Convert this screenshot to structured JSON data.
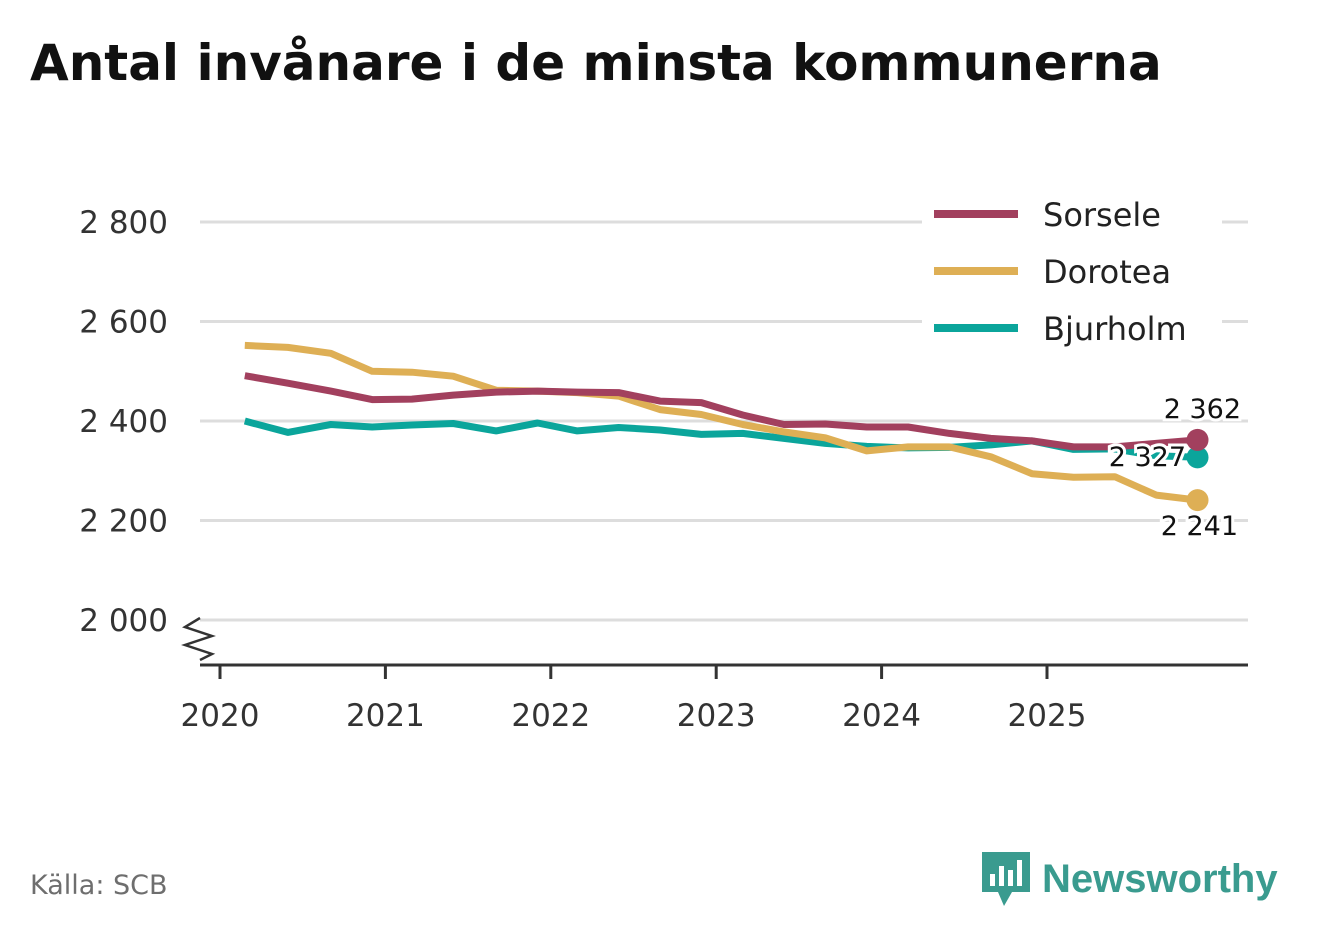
{
  "title": "Antal invånare i de minsta kommunerna",
  "source": "Källa: SCB",
  "brand": {
    "name": "Newsworthy",
    "icon": "newsworthy-logo-icon"
  },
  "colors": {
    "Sorsele": "#a2405e",
    "Dorotea": "#deaf55",
    "Bjurholm": "#0ba59b",
    "grid": "#dddddd",
    "axis": "#333333"
  },
  "chart_data": {
    "type": "line",
    "title": "Antal invånare i de minsta kommunerna",
    "xlabel": "",
    "ylabel": "",
    "xlim": [
      2020,
      2026.2
    ],
    "ylim": [
      2000,
      2850
    ],
    "y_ticks": [
      2000,
      2200,
      2400,
      2600,
      2800
    ],
    "y_tick_labels": [
      "2 000",
      "2 200",
      "2 400",
      "2 600",
      "2 800"
    ],
    "x_ticks": [
      2020,
      2021,
      2022,
      2023,
      2024,
      2025
    ],
    "x_tick_labels": [
      "2020",
      "2021",
      "2022",
      "2023",
      "2024",
      "2025"
    ],
    "axis_break": true,
    "grid": true,
    "legend_position": "top-right",
    "x": [
      2020.15,
      2020.41,
      2020.67,
      2020.92,
      2021.16,
      2021.41,
      2021.67,
      2021.92,
      2022.16,
      2022.41,
      2022.66,
      2022.91,
      2023.16,
      2023.41,
      2023.66,
      2023.91,
      2024.16,
      2024.41,
      2024.66,
      2024.91,
      2025.16,
      2025.41,
      2025.66,
      2025.91
    ],
    "series": [
      {
        "name": "Sorsele",
        "end_label": "2 362",
        "values": [
          2491,
          2476,
          2460,
          2443,
          2444,
          2452,
          2458,
          2460,
          2458,
          2457,
          2440,
          2437,
          2412,
          2393,
          2394,
          2388,
          2388,
          2375,
          2365,
          2360,
          2348,
          2348,
          2355,
          2362
        ]
      },
      {
        "name": "Dorotea",
        "end_label": "2 241",
        "values": [
          2552,
          2548,
          2536,
          2500,
          2498,
          2490,
          2462,
          2460,
          2457,
          2450,
          2423,
          2413,
          2393,
          2378,
          2366,
          2340,
          2348,
          2348,
          2328,
          2294,
          2287,
          2288,
          2251,
          2241
        ]
      },
      {
        "name": "Bjurholm",
        "end_label": "2 327",
        "values": [
          2400,
          2377,
          2393,
          2388,
          2392,
          2395,
          2380,
          2396,
          2380,
          2387,
          2382,
          2373,
          2375,
          2365,
          2355,
          2349,
          2346,
          2347,
          2352,
          2360,
          2343,
          2344,
          2330,
          2327
        ]
      }
    ]
  }
}
